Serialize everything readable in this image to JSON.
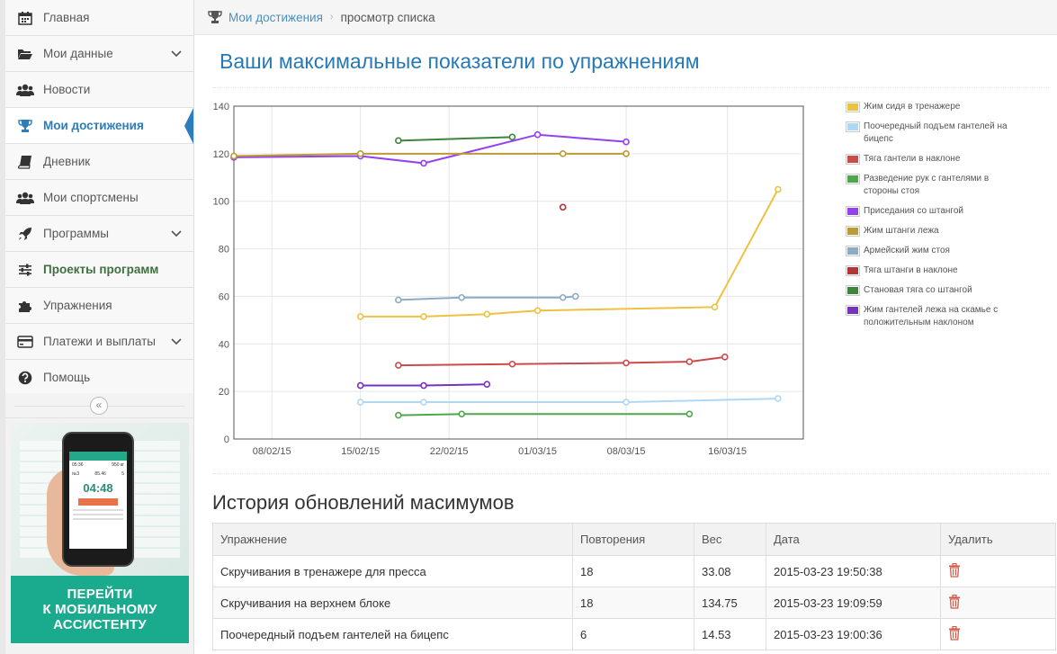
{
  "sidebar": {
    "items": [
      {
        "label": "Главная",
        "icon": "calendar-icon",
        "expandable": false
      },
      {
        "label": "Мои данные",
        "icon": "folder-open-icon",
        "expandable": true
      },
      {
        "label": "Новости",
        "icon": "users-icon",
        "expandable": false
      },
      {
        "label": "Мои достижения",
        "icon": "trophy-icon",
        "expandable": false,
        "active": true
      },
      {
        "label": "Дневник",
        "icon": "book-icon",
        "expandable": false
      },
      {
        "label": "Мои спортсмены",
        "icon": "users-icon",
        "expandable": false
      },
      {
        "label": "Программы",
        "icon": "rocket-icon",
        "expandable": true
      },
      {
        "label": "Проекты программ",
        "icon": "sliders-icon",
        "expandable": false
      },
      {
        "label": "Упражнения",
        "icon": "puzzle-icon",
        "expandable": false
      },
      {
        "label": "Платежи и выплаты",
        "icon": "credit-card-icon",
        "expandable": true
      },
      {
        "label": "Помощь",
        "icon": "question-circle-icon",
        "expandable": false
      }
    ],
    "collapse_glyph": "«",
    "promo": {
      "text_lines": [
        "ПЕРЕЙТИ",
        "К МОБИЛЬНОМУ",
        "АССИСТЕНТУ"
      ],
      "phone_time": "04:48",
      "phone_left": "05:36",
      "phone_right": "950 кг",
      "phone_set": "№3",
      "phone_weight": "85.46",
      "phone_reps": "5"
    }
  },
  "breadcrumb": {
    "link": "Мои достижения",
    "separator": "›",
    "current": "просмотр списка"
  },
  "page_title": "Ваши максимальные показатели по упражнениям",
  "chart_data": {
    "type": "line",
    "x_tick_labels": [
      "08/02/15",
      "15/02/15",
      "22/02/15",
      "01/03/15",
      "08/03/15",
      "16/03/15"
    ],
    "x_tick_days": [
      8,
      15,
      22,
      29,
      36,
      44
    ],
    "xlim_days": [
      5,
      50
    ],
    "ylim": [
      0,
      140
    ],
    "y_ticks": [
      0,
      20,
      40,
      60,
      80,
      100,
      120,
      140
    ],
    "grid": true,
    "legend_position": "right",
    "series": [
      {
        "name": "Жим сидя в тренажере",
        "color": "#edc240",
        "x": [
          15,
          20,
          25,
          29,
          43,
          48
        ],
        "y": [
          51.5,
          51.5,
          52.5,
          54,
          55.5,
          105
        ]
      },
      {
        "name": "Поочередный подъем гантелей на бицепс",
        "color": "#afd8f8",
        "x": [
          15,
          20,
          36,
          48
        ],
        "y": [
          15.5,
          15.5,
          15.5,
          17
        ]
      },
      {
        "name": "Тяга гантели в наклоне",
        "color": "#cb4b4b",
        "x": [
          18,
          27,
          36,
          41,
          43.8
        ],
        "y": [
          31,
          31.5,
          32,
          32.5,
          34.5
        ]
      },
      {
        "name": "Разведение рук с гантелями в стороны стоя",
        "color": "#4da74d",
        "x": [
          18,
          23,
          41
        ],
        "y": [
          10,
          10.5,
          10.5
        ]
      },
      {
        "name": "Приседания со штангой",
        "color": "#9440ed",
        "x": [
          5,
          15,
          20,
          29,
          36
        ],
        "y": [
          118.5,
          119,
          116,
          128,
          125
        ]
      },
      {
        "name": "Жим штанги лежа",
        "color": "#bd9b33",
        "x": [
          5,
          15,
          31,
          36
        ],
        "y": [
          119,
          120,
          120,
          120
        ]
      },
      {
        "name": "Армейский жим стоя",
        "color": "#8cacc6",
        "x": [
          18,
          23,
          31,
          32
        ],
        "y": [
          58.5,
          59.5,
          59.5,
          60
        ]
      },
      {
        "name": "Тяга штанги в наклоне",
        "color": "#b33535",
        "x": [
          31
        ],
        "y": [
          97.5
        ]
      },
      {
        "name": "Становая тяга со штангой",
        "color": "#3d853d",
        "x": [
          18,
          27
        ],
        "y": [
          125.5,
          127
        ]
      },
      {
        "name": "Жим гантелей лежа на скамье с положительным наклоном",
        "color": "#7633bd",
        "x": [
          15,
          20,
          25
        ],
        "y": [
          22.5,
          22.5,
          23
        ]
      }
    ]
  },
  "history": {
    "title": "История обновлений масимумов",
    "columns": [
      "Упражнение",
      "Повторения",
      "Вес",
      "Дата",
      "Удалить"
    ],
    "rows": [
      [
        "Скручивания в тренажере для пресса",
        "18",
        "33.08",
        "2015-03-23 19:50:38"
      ],
      [
        "Скручивания на верхнем блоке",
        "18",
        "134.75",
        "2015-03-23 19:09:59"
      ],
      [
        "Поочередный подъем гантелей на бицепс",
        "6",
        "14.53",
        "2015-03-23 19:00:36"
      ]
    ]
  }
}
